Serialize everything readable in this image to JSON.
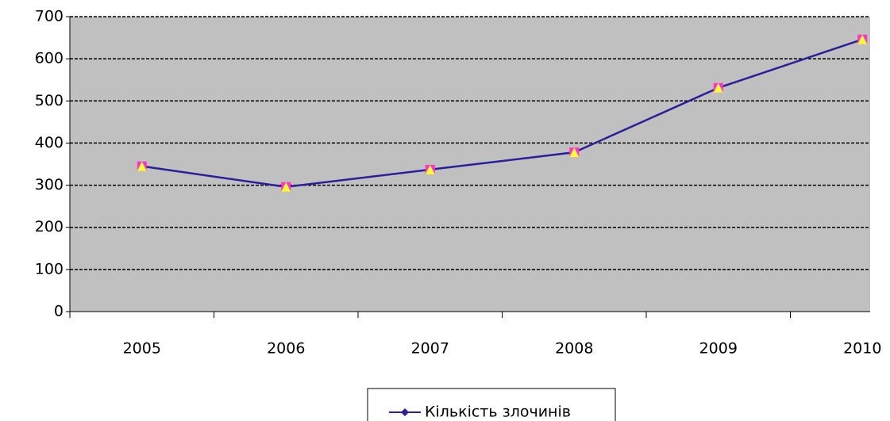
{
  "chart_data": {
    "type": "line",
    "categories": [
      "2005",
      "2006",
      "2007",
      "2008",
      "2009",
      "2010"
    ],
    "series": [
      {
        "name": "Кількість злочинів",
        "color": "#2a1f9a",
        "values": [
          345,
          296,
          337,
          378,
          531,
          646
        ]
      }
    ],
    "ylim": [
      0,
      700
    ],
    "yticks": [
      0,
      100,
      200,
      300,
      400,
      500,
      600,
      700
    ],
    "grid": true,
    "legend": "bottom"
  }
}
